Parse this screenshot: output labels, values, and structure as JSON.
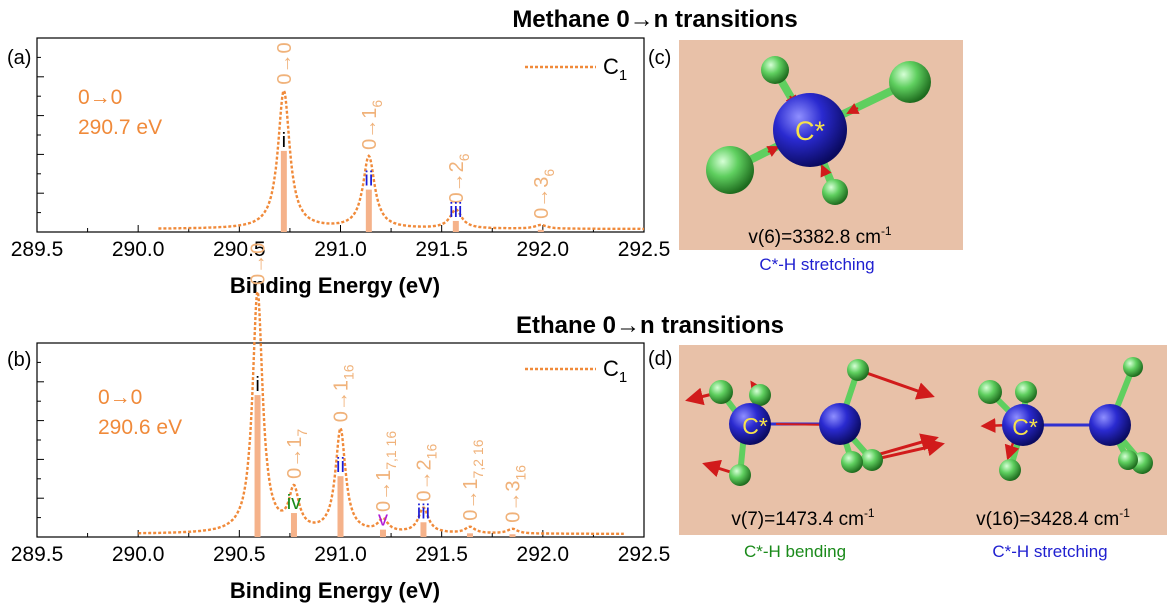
{
  "colors": {
    "curve": "#f08a3a",
    "stick": "#f5b28a",
    "peak_label": "#f0b27a",
    "panel_bg": "#e8c1a8",
    "carbon": "#2a2ad0",
    "hydrogen": "#5fcf5f",
    "arrow": "#d11b1b",
    "label_star": "#f7e34a",
    "roman_black": "#000000",
    "roman_blue": "#1a1ad6",
    "roman_green": "#1a8a1a",
    "roman_purple": "#b01ad6",
    "caption_blue": "#2020d0",
    "caption_green": "#1a8a1a"
  },
  "chart_data": [
    {
      "type": "line",
      "panel": "(a)",
      "title": "Methane 0→n transitions",
      "xlabel": "Binding Energy (eV)",
      "ylabel": "",
      "xlim": [
        289.5,
        292.5
      ],
      "ylim": [
        0,
        1.0
      ],
      "xticks": [
        "289.5",
        "290.0",
        "290.5",
        "291.0",
        "291.5",
        "292.0",
        "292.5"
      ],
      "legend": {
        "label": "C",
        "sub": "1",
        "position": "top-right"
      },
      "annotation": {
        "line1": "0→0",
        "line2": "290.7 eV"
      },
      "fwhm": 0.07,
      "series": [
        {
          "name": "C1",
          "style": "dotted",
          "x_start": 290.1,
          "x_end": 292.5
        }
      ],
      "sticks": [
        {
          "x": 290.72,
          "height": 0.44,
          "roman": "i",
          "roman_color": "black",
          "label": "0→0",
          "sub": ""
        },
        {
          "x": 291.14,
          "height": 0.23,
          "roman": "ii",
          "roman_color": "blue",
          "label": "0→1",
          "sub": "6"
        },
        {
          "x": 291.57,
          "height": 0.06,
          "roman": "iii",
          "roman_color": "blue",
          "label": "0→2",
          "sub": "6"
        },
        {
          "x": 291.99,
          "height": 0.012,
          "roman": "",
          "roman_color": "blue",
          "label": "0→3",
          "sub": "6"
        }
      ]
    },
    {
      "type": "line",
      "panel": "(b)",
      "title": "Ethane 0→n transitions",
      "xlabel": "Binding Energy (eV)",
      "ylabel": "",
      "xlim": [
        289.5,
        292.5
      ],
      "ylim": [
        0,
        1.0
      ],
      "xticks": [
        "289.5",
        "290.0",
        "290.5",
        "291.0",
        "291.5",
        "292.0",
        "292.5"
      ],
      "legend": {
        "label": "C",
        "sub": "1",
        "position": "top-right"
      },
      "annotation": {
        "line1": "0→0",
        "line2": "290.6 eV"
      },
      "fwhm": 0.06,
      "series": [
        {
          "name": "C1",
          "style": "dotted",
          "x_start": 290.0,
          "x_end": 292.4
        }
      ],
      "sticks": [
        {
          "x": 290.59,
          "height": 0.77,
          "roman": "i",
          "roman_color": "black",
          "label": "0→0",
          "sub": ""
        },
        {
          "x": 290.77,
          "height": 0.13,
          "roman": "iv",
          "roman_color": "green",
          "label": "0→1",
          "sub": "7"
        },
        {
          "x": 291.0,
          "height": 0.33,
          "roman": "ii",
          "roman_color": "blue",
          "label": "0→1",
          "sub": "16"
        },
        {
          "x": 291.21,
          "height": 0.04,
          "roman": "v",
          "roman_color": "purple",
          "label": "0→1",
          "sub": "7,1 16"
        },
        {
          "x": 291.41,
          "height": 0.08,
          "roman": "iii",
          "roman_color": "blue",
          "label": "0→2",
          "sub": "16"
        },
        {
          "x": 291.64,
          "height": 0.02,
          "roman": "",
          "roman_color": "blue",
          "label": "0→1",
          "sub": "7,2 16"
        },
        {
          "x": 291.85,
          "height": 0.015,
          "roman": "",
          "roman_color": "blue",
          "label": "0→3",
          "sub": "16"
        }
      ]
    }
  ],
  "panel_c": {
    "tag": "(c)",
    "atom_label": "C*",
    "mode_label": "v(6)=3382.8 cm",
    "mode_sup": "-1",
    "caption": "C*-H stretching"
  },
  "panel_d": {
    "tag": "(d)",
    "left": {
      "atom_label": "C*",
      "mode_label": "v(7)=1473.4 cm",
      "mode_sup": "-1",
      "caption": "C*-H bending"
    },
    "right": {
      "atom_label": "C*",
      "mode_label": "v(16)=3428.4 cm",
      "mode_sup": "-1",
      "caption": "C*-H stretching"
    }
  }
}
